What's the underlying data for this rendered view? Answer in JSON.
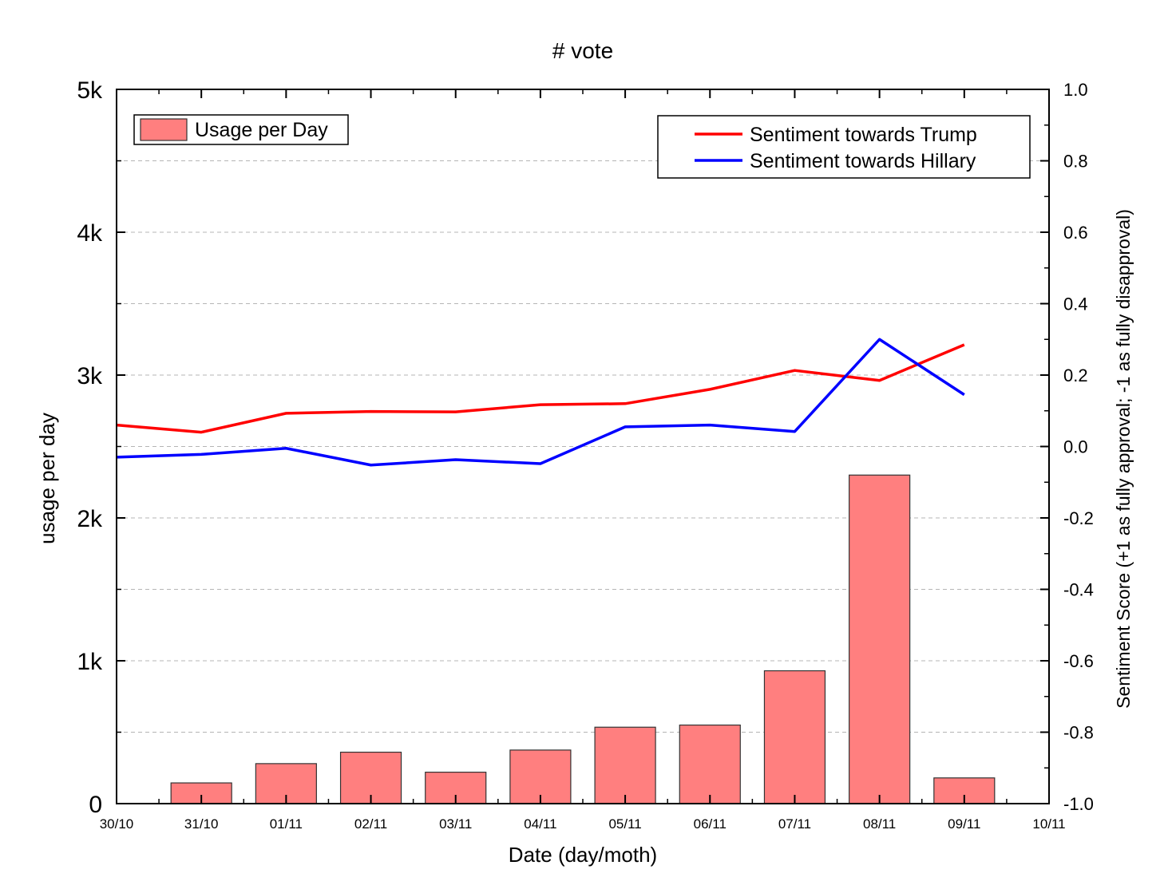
{
  "chart_data": {
    "type": "bar+line",
    "title": "# vote",
    "xlabel": "Date (day/moth)",
    "ylabel_left": "usage per day",
    "ylabel_right": "Sentiment Score (+1 as fully approval; -1 as fully disapproval)",
    "x_ticks": [
      "30/10",
      "31/10",
      "01/11",
      "02/11",
      "03/11",
      "04/11",
      "05/11",
      "06/11",
      "07/11",
      "08/11",
      "09/11",
      "10/11"
    ],
    "y_left": {
      "min": 0,
      "max": 5000,
      "ticks": [
        0,
        1000,
        2000,
        3000,
        4000,
        5000
      ],
      "tick_labels": [
        "0",
        "1k",
        "2k",
        "3k",
        "4k",
        "5k"
      ]
    },
    "y_right": {
      "min": -1.0,
      "max": 1.0,
      "ticks": [
        -1.0,
        -0.8,
        -0.6,
        -0.4,
        -0.2,
        0.0,
        0.2,
        0.4,
        0.6,
        0.8,
        1.0
      ],
      "tick_labels": [
        "-1.0",
        "-0.8",
        "-0.6",
        "-0.4",
        "-0.2",
        "0.0",
        "0.2",
        "0.4",
        "0.6",
        "0.8",
        "1.0"
      ]
    },
    "bars": {
      "name": "Usage per Day",
      "color": "#ff7f7f",
      "categories": [
        "31/10",
        "01/11",
        "02/11",
        "03/11",
        "04/11",
        "05/11",
        "06/11",
        "07/11",
        "08/11",
        "09/11"
      ],
      "values": [
        145,
        280,
        360,
        220,
        375,
        535,
        550,
        930,
        2300,
        180
      ]
    },
    "lines": [
      {
        "name": "Sentiment towards Trump",
        "color": "#ff0000",
        "x": [
          "30/10",
          "31/10",
          "01/11",
          "02/11",
          "03/11",
          "04/11",
          "05/11",
          "06/11",
          "07/11",
          "08/11",
          "09/11"
        ],
        "y": [
          0.06,
          0.04,
          0.093,
          0.098,
          0.097,
          0.117,
          0.12,
          0.16,
          0.213,
          0.185,
          0.285
        ]
      },
      {
        "name": "Sentiment towards Hillary",
        "color": "#0000ff",
        "x": [
          "30/10",
          "31/10",
          "01/11",
          "02/11",
          "03/11",
          "04/11",
          "05/11",
          "06/11",
          "07/11",
          "08/11",
          "09/11"
        ],
        "y": [
          -0.03,
          -0.022,
          -0.005,
          -0.052,
          -0.037,
          -0.048,
          0.055,
          0.06,
          0.042,
          0.3,
          0.145
        ]
      }
    ],
    "grid": "horizontal-dashed",
    "legend_bars_position": "top-left",
    "legend_lines_position": "top-right"
  }
}
